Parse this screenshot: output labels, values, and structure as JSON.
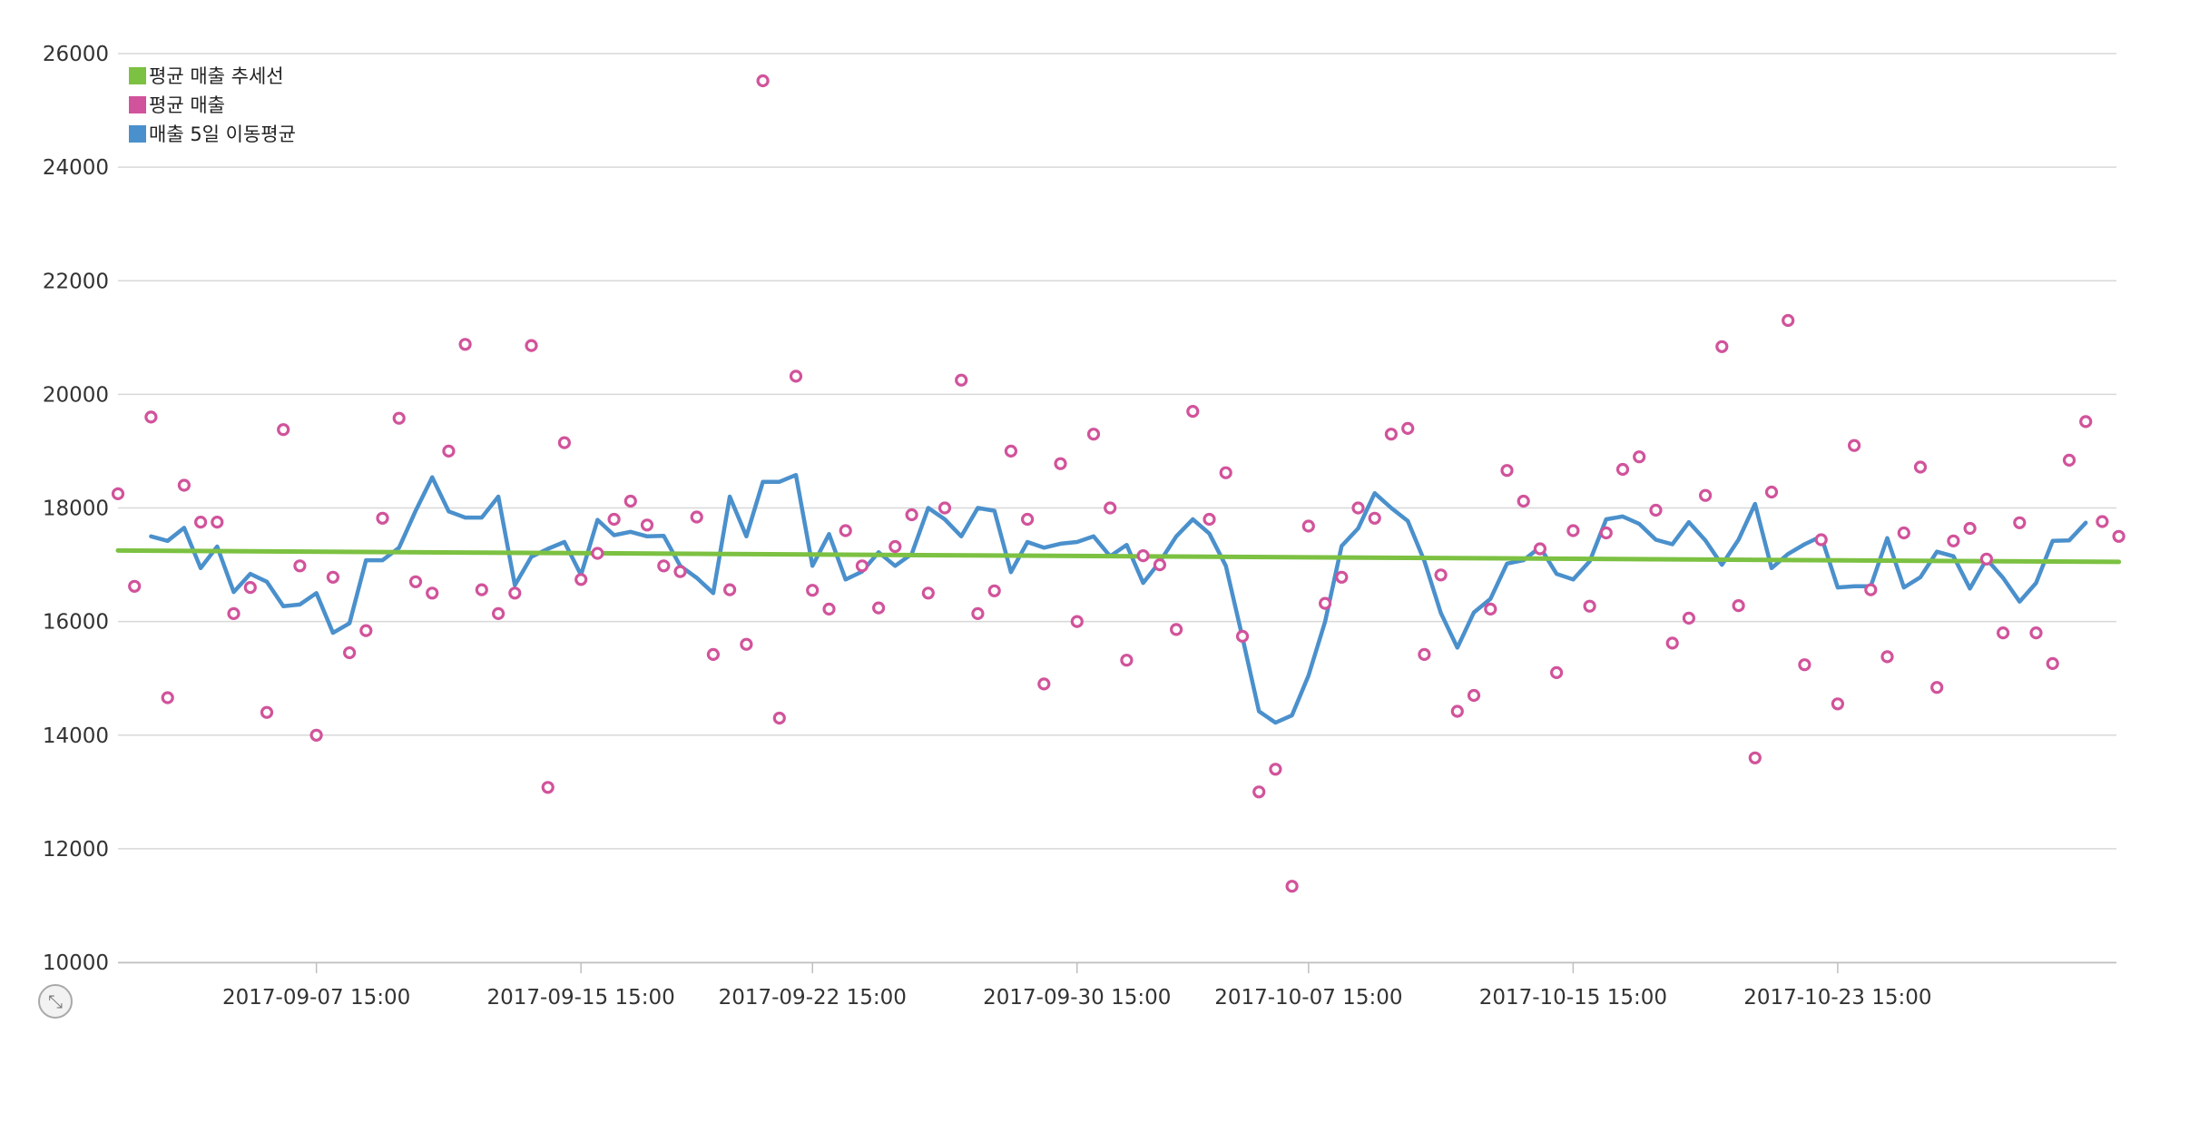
{
  "chart_data": {
    "type": "line",
    "title": "",
    "xlabel": "",
    "ylabel": "",
    "ylim": [
      10000,
      26000
    ],
    "yticks": [
      10000,
      12000,
      14000,
      16000,
      18000,
      20000,
      22000,
      24000,
      26000
    ],
    "xticks": [
      "2017-09-07 15:00",
      "2017-09-15 15:00",
      "2017-09-22 15:00",
      "2017-09-30 15:00",
      "2017-10-07 15:00",
      "2017-10-15 15:00",
      "2017-10-23 15:00"
    ],
    "x_start": "2017-09-01",
    "grid": "horizontal",
    "legend_position": "top-left",
    "series": [
      {
        "name": "평균 매출 추세선",
        "kind": "line",
        "color": "#7cc142",
        "values": [
          17250,
          17050
        ]
      },
      {
        "name": "평균 매출",
        "kind": "scatter",
        "color": "#d1539b",
        "values": [
          18250,
          16620,
          19600,
          14660,
          18400,
          17750,
          17750,
          16140,
          16600,
          14400,
          19380,
          16980,
          14000,
          16780,
          15450,
          15840,
          17820,
          19580,
          16700,
          16500,
          19000,
          20880,
          16560,
          16140,
          16500,
          20860,
          13080,
          19150,
          16740,
          17200,
          17800,
          18120,
          17700,
          16980,
          16880,
          17840,
          15420,
          16560,
          15600,
          25520,
          14300,
          20320,
          16550,
          16220,
          17600,
          16980,
          16240,
          17320,
          17880,
          16500,
          18000,
          20250,
          16140,
          16540,
          19000,
          17800,
          14900,
          18780,
          16000,
          19300,
          18000,
          15320,
          17160,
          17000,
          15860,
          19700,
          17800,
          18620,
          15740,
          13000,
          13400,
          11340,
          17680,
          16320,
          16780,
          18000,
          17820,
          19300,
          19400,
          15420,
          16820,
          14420,
          14700,
          16220,
          18660,
          18120,
          17280,
          15100,
          17600,
          16270,
          17560,
          18680,
          18900,
          17960,
          15620,
          16060,
          18220,
          20840,
          16280,
          13600,
          18280,
          21300,
          15240,
          17440,
          14550,
          19100,
          16560,
          15380,
          17560,
          18720,
          14840,
          17420,
          17640,
          17100,
          15800,
          17740,
          15800,
          15260,
          18840,
          19520,
          17760,
          17500
        ]
      },
      {
        "name": "매출 5일 이동평균",
        "kind": "line",
        "color": "#4a90cc",
        "x_offset": 2,
        "values": [
          17500,
          17420,
          17650,
          16940,
          17320,
          16520,
          16840,
          16700,
          16270,
          16300,
          16500,
          15800,
          15970,
          17080,
          17080,
          17300,
          17950,
          18540,
          17940,
          17830,
          17830,
          18200,
          16640,
          17140,
          17280,
          17400,
          16820,
          17790,
          17520,
          17580,
          17500,
          17510,
          16980,
          16770,
          16500,
          18200,
          17500,
          18460,
          18460,
          18580,
          16980,
          17540,
          16740,
          16880,
          17220,
          16980,
          17190,
          18000,
          17800,
          17500,
          18000,
          17950,
          16870,
          17400,
          17300,
          17370,
          17400,
          17500,
          17150,
          17350,
          16680,
          17050,
          17500,
          17800,
          17550,
          16980,
          15720,
          14420,
          14220,
          14350,
          15050,
          16000,
          17330,
          17640,
          18260,
          18000,
          17770,
          17070,
          16150,
          15540,
          16160,
          16400,
          17020,
          17080,
          17310,
          16840,
          16740,
          17060,
          17800,
          17850,
          17720,
          17440,
          17360,
          17750,
          17430,
          17000,
          17440,
          18070,
          16940,
          17190,
          17360,
          17500,
          16600,
          16620,
          16620,
          17470,
          16600,
          16780,
          17230,
          17150,
          16580,
          17100,
          16770,
          16350,
          16680,
          17420,
          17430,
          17740
        ]
      }
    ]
  },
  "legend": {
    "items": [
      {
        "label": "평균 매출 추세선",
        "color": "#7cc142"
      },
      {
        "label": "평균 매출",
        "color": "#d1539b"
      },
      {
        "label": "매출 5일 이동평균",
        "color": "#4a90cc"
      }
    ]
  },
  "zoom_reset": {
    "icon": "collapse-arrows-icon",
    "glyph": "⤡"
  }
}
